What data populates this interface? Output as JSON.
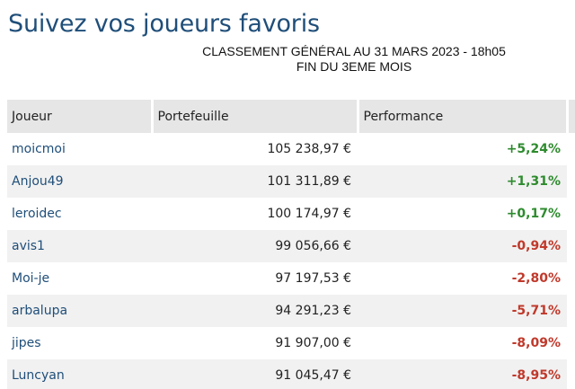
{
  "header": {
    "title": "Suivez vos joueurs favoris",
    "subtitle_line1": "CLASSEMENT GÉNÉRAL AU 31 MARS 2023 - 18h05",
    "subtitle_line2": "FIN DU 3EME MOIS"
  },
  "colors": {
    "title": "#1f4e79",
    "player_link": "#1f4e79",
    "positive": "#2e8b2e",
    "negative": "#c0392b",
    "header_bg": "#e6e6e6",
    "stripe_bg": "#f1f1f1"
  },
  "table": {
    "columns": [
      "Joueur",
      "Portefeuille",
      "Performance"
    ],
    "rows": [
      {
        "player": "moicmoi",
        "portfolio": "105 238,97 €",
        "performance": "+5,24%"
      },
      {
        "player": "Anjou49",
        "portfolio": "101 311,89 €",
        "performance": "+1,31%"
      },
      {
        "player": "leroidec",
        "portfolio": "100 174,97 €",
        "performance": "+0,17%"
      },
      {
        "player": "avis1",
        "portfolio": "99 056,66 €",
        "performance": "-0,94%"
      },
      {
        "player": "Moi-je",
        "portfolio": "97 197,53 €",
        "performance": "-2,80%"
      },
      {
        "player": "arbalupa",
        "portfolio": "94 291,23 €",
        "performance": "-5,71%"
      },
      {
        "player": "jipes",
        "portfolio": "91 907,00 €",
        "performance": "-8,09%"
      },
      {
        "player": "Luncyan",
        "portfolio": "91 045,47 €",
        "performance": "-8,95%"
      }
    ]
  }
}
